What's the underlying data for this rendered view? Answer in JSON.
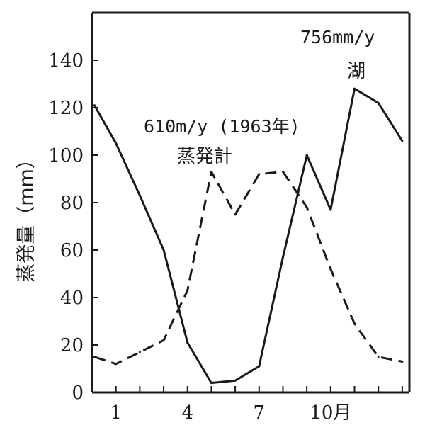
{
  "chart_data": {
    "type": "line",
    "title": "",
    "xlabel": "",
    "ylabel": "蒸発量（mm）",
    "ylim": [
      0,
      160
    ],
    "yticks": [
      "0",
      "20",
      "40",
      "60",
      "80",
      "100",
      "120",
      "140"
    ],
    "xticks": [
      "1",
      "4",
      "7",
      "10月"
    ],
    "x": [
      0.1,
      1,
      2,
      3,
      4,
      5,
      6,
      7,
      8,
      9,
      10,
      11,
      12,
      13
    ],
    "grid": false,
    "line_color": "#1a1a1a",
    "series": [
      {
        "name": "湖",
        "style": "solid",
        "annotation": "756mm/y",
        "values": [
          121,
          105,
          83,
          60,
          21,
          4,
          5,
          11,
          57,
          100,
          77,
          128,
          122,
          106
        ]
      },
      {
        "name": "蒸発計",
        "style": "dashed",
        "annotation": "610m/y (1963年)",
        "values": [
          15,
          12,
          17,
          22,
          43,
          93,
          75,
          92,
          93,
          78,
          52,
          29,
          15,
          13
        ]
      }
    ]
  }
}
